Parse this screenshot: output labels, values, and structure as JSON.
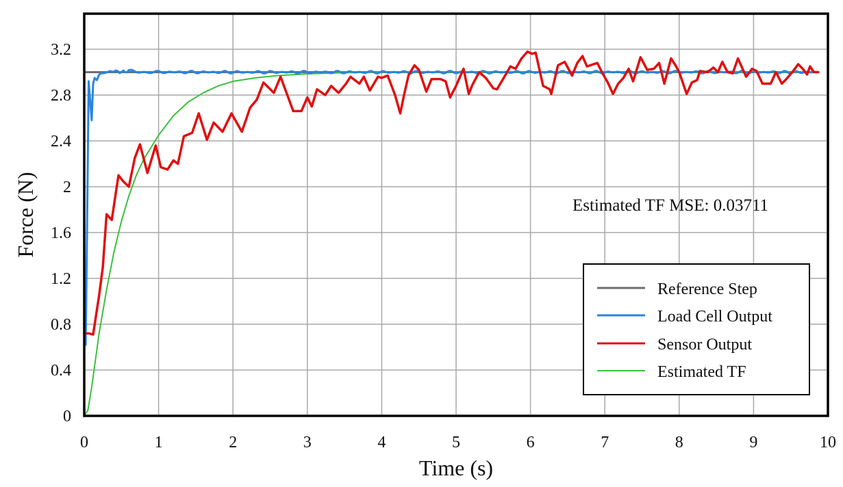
{
  "chart_data": {
    "type": "line",
    "title": "",
    "xlabel": "Time (s)",
    "ylabel": "Force (N)",
    "xlim": [
      0,
      10
    ],
    "ylim": [
      0,
      3.5
    ],
    "xticks": [
      "0",
      "1",
      "2",
      "3",
      "4",
      "5",
      "6",
      "7",
      "8",
      "9",
      "10"
    ],
    "yticks": [
      "0",
      "0.4",
      "0.8",
      "1.2",
      "1.6",
      "2",
      "2.4",
      "2.8",
      "3.2"
    ],
    "grid": true,
    "legend_position": "lower right",
    "annotation": "Estimated TF MSE: 0.03711",
    "series": [
      {
        "name": "Reference Step",
        "color": "#6e6e6e",
        "x": [
          0,
          0.0,
          9.85
        ],
        "y": [
          0,
          3.0,
          3.0
        ]
      },
      {
        "name": "Load Cell Output",
        "color": "#2b84e0",
        "x": [
          0.0,
          0.02,
          0.06,
          0.08,
          0.1,
          0.12,
          0.14,
          0.17,
          0.2,
          0.25,
          0.3,
          0.4,
          0.5,
          0.6,
          0.8,
          1.0,
          1.5,
          2.0,
          3.0,
          4.0,
          5.0,
          6.0,
          7.0,
          8.0,
          9.0,
          9.85
        ],
        "y": [
          0.62,
          0.62,
          2.92,
          2.75,
          2.58,
          2.9,
          2.95,
          2.93,
          2.98,
          2.99,
          3.0,
          3.01,
          3.0,
          3.01,
          3.0,
          3.0,
          3.0,
          3.0,
          3.0,
          3.0,
          3.0,
          3.0,
          3.0,
          3.0,
          3.0,
          3.0
        ]
      },
      {
        "name": "Sensor Output",
        "color": "#e01010",
        "x": [
          0.0,
          0.06,
          0.12,
          0.2,
          0.25,
          0.3,
          0.37,
          0.46,
          0.52,
          0.6,
          0.68,
          0.75,
          0.85,
          0.96,
          1.03,
          1.12,
          1.2,
          1.26,
          1.34,
          1.45,
          1.54,
          1.65,
          1.74,
          1.86,
          1.98,
          2.12,
          2.23,
          2.32,
          2.41,
          2.55,
          2.64,
          2.81,
          2.92,
          3.0,
          3.06,
          3.13,
          3.24,
          3.32,
          3.42,
          3.52,
          3.58,
          3.7,
          3.76,
          3.84,
          3.95,
          4.0,
          4.08,
          4.18,
          4.25,
          4.3,
          4.36,
          4.44,
          4.5,
          4.6,
          4.67,
          4.79,
          4.86,
          4.92,
          5.0,
          5.1,
          5.17,
          5.22,
          5.31,
          5.4,
          5.5,
          5.55,
          5.65,
          5.73,
          5.8,
          5.88,
          5.96,
          6.02,
          6.07,
          6.17,
          6.26,
          6.28,
          6.37,
          6.46,
          6.56,
          6.63,
          6.7,
          6.76,
          6.85,
          6.9,
          6.96,
          7.04,
          7.11,
          7.18,
          7.25,
          7.32,
          7.38,
          7.48,
          7.57,
          7.66,
          7.73,
          7.8,
          7.89,
          7.95,
          8.0,
          8.1,
          8.17,
          8.24,
          8.28,
          8.38,
          8.46,
          8.52,
          8.58,
          8.65,
          8.72,
          8.79,
          8.9,
          8.98,
          9.04,
          9.12,
          9.23,
          9.3,
          9.38,
          9.44,
          9.52,
          9.6,
          9.66,
          9.72,
          9.76,
          9.81,
          9.87
        ],
        "y": [
          0.72,
          0.72,
          0.71,
          1.05,
          1.3,
          1.76,
          1.71,
          2.1,
          2.05,
          2.0,
          2.25,
          2.37,
          2.12,
          2.36,
          2.17,
          2.15,
          2.23,
          2.2,
          2.44,
          2.47,
          2.64,
          2.41,
          2.56,
          2.48,
          2.64,
          2.48,
          2.69,
          2.76,
          2.91,
          2.82,
          2.96,
          2.66,
          2.66,
          2.78,
          2.7,
          2.85,
          2.8,
          2.88,
          2.82,
          2.9,
          2.96,
          2.9,
          2.96,
          2.84,
          2.96,
          2.95,
          2.97,
          2.8,
          2.64,
          2.8,
          2.97,
          3.06,
          3.02,
          2.83,
          2.94,
          2.94,
          2.92,
          2.78,
          2.88,
          3.03,
          2.81,
          2.89,
          3.0,
          2.95,
          2.86,
          2.85,
          2.96,
          3.05,
          3.03,
          3.12,
          3.18,
          3.16,
          3.17,
          2.88,
          2.85,
          2.81,
          3.06,
          3.09,
          2.97,
          3.08,
          3.14,
          3.05,
          3.07,
          3.08,
          3.0,
          2.91,
          2.81,
          2.9,
          2.95,
          3.03,
          2.92,
          3.13,
          3.02,
          3.03,
          3.08,
          2.9,
          3.12,
          3.06,
          3.0,
          2.81,
          2.91,
          2.93,
          3.01,
          3.0,
          3.04,
          3.0,
          3.09,
          3.0,
          2.99,
          3.12,
          2.96,
          3.03,
          3.01,
          2.9,
          2.9,
          3.0,
          2.9,
          2.94,
          3.0,
          3.07,
          3.03,
          2.98,
          3.05,
          3.0,
          3.0
        ]
      },
      {
        "name": "Estimated TF",
        "color": "#3cc03c",
        "model": "second-order step response approx. F = 3(1 - e^(-t/0.68)) with small initial delay",
        "x": [
          0.0,
          0.05,
          0.1,
          0.2,
          0.3,
          0.4,
          0.5,
          0.6,
          0.7,
          0.8,
          1.0,
          1.2,
          1.4,
          1.6,
          1.8,
          2.0,
          2.3,
          2.6,
          3.0,
          3.5,
          4.0,
          5.0,
          6.0,
          7.0,
          8.0,
          9.0,
          9.85
        ],
        "y": [
          0.0,
          0.05,
          0.25,
          0.72,
          1.1,
          1.43,
          1.7,
          1.92,
          2.1,
          2.24,
          2.45,
          2.62,
          2.74,
          2.82,
          2.88,
          2.92,
          2.95,
          2.97,
          2.985,
          2.995,
          3.0,
          3.0,
          3.0,
          3.0,
          3.0,
          3.0,
          3.0
        ]
      }
    ]
  },
  "legend": {
    "items": [
      {
        "label": "Reference Step",
        "color": "#6e6e6e"
      },
      {
        "label": "Load Cell Output",
        "color": "#2b84e0"
      },
      {
        "label": "Sensor Output",
        "color": "#e01010"
      },
      {
        "label": "Estimated TF",
        "color": "#3cc03c"
      }
    ]
  }
}
